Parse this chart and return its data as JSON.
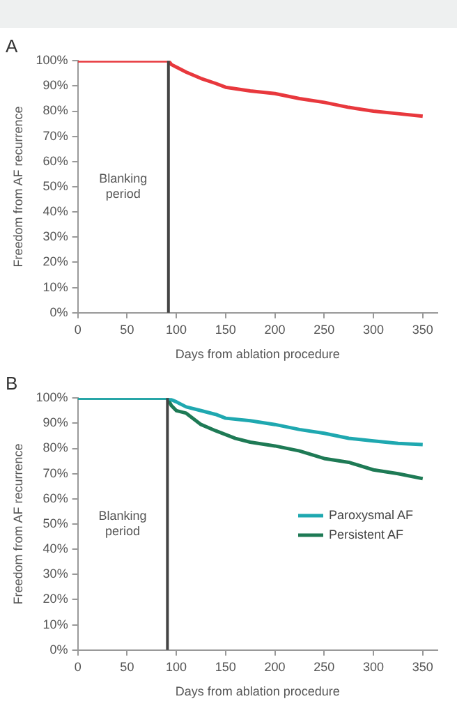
{
  "chart_data": [
    {
      "type": "line",
      "title": "A",
      "xlabel": "Days from ablation procedure",
      "ylabel": "Freedom from AF recurrence",
      "xlim": [
        0,
        365
      ],
      "xticks": [
        0,
        50,
        100,
        150,
        200,
        250,
        300,
        350
      ],
      "ylim": [
        0,
        100
      ],
      "yticks": [
        {
          "value": 0,
          "label": "0%"
        },
        {
          "value": 10,
          "label": "10%"
        },
        {
          "value": 20,
          "label": "20%"
        },
        {
          "value": 30,
          "label": "30%"
        },
        {
          "value": 40,
          "label": "40%"
        },
        {
          "value": 50,
          "label": "50%"
        },
        {
          "value": 60,
          "label": "60%"
        },
        {
          "value": 70,
          "label": "70%"
        },
        {
          "value": 80,
          "label": "80%"
        },
        {
          "value": 90,
          "label": "90%"
        },
        {
          "value": 100,
          "label": "100%"
        }
      ],
      "grid": false,
      "legend": false,
      "marker": "none",
      "line_style": "solid",
      "ref_lines": [
        {
          "axis": "x",
          "value": 92,
          "label": "Blanking period",
          "color": "#444444"
        }
      ],
      "series": [
        {
          "color": "#e8383d",
          "x": [
            0,
            92,
            95,
            100,
            110,
            125,
            140,
            150,
            175,
            200,
            225,
            250,
            275,
            300,
            325,
            350
          ],
          "values": [
            100,
            100,
            98.5,
            97.5,
            95.5,
            93,
            91,
            89.5,
            88,
            87,
            85,
            83.5,
            81.5,
            80,
            79,
            78
          ]
        }
      ]
    },
    {
      "type": "line",
      "title": "B",
      "xlabel": "Days from ablation procedure",
      "ylabel": "Freedom from AF recurrence",
      "xlim": [
        0,
        365
      ],
      "xticks": [
        0,
        50,
        100,
        150,
        200,
        250,
        300,
        350
      ],
      "ylim": [
        0,
        100
      ],
      "yticks": [
        {
          "value": 0,
          "label": "0%"
        },
        {
          "value": 10,
          "label": "10%"
        },
        {
          "value": 20,
          "label": "20%"
        },
        {
          "value": 30,
          "label": "30%"
        },
        {
          "value": 40,
          "label": "40%"
        },
        {
          "value": 50,
          "label": "50%"
        },
        {
          "value": 60,
          "label": "60%"
        },
        {
          "value": 70,
          "label": "70%"
        },
        {
          "value": 80,
          "label": "80%"
        },
        {
          "value": 90,
          "label": "90%"
        },
        {
          "value": 100,
          "label": "100%"
        }
      ],
      "grid": false,
      "legend": "right",
      "marker": "none",
      "line_style": "solid",
      "ref_lines": [
        {
          "axis": "x",
          "value": 91,
          "label": "Blanking period",
          "color": "#444444"
        }
      ],
      "series": [
        {
          "name": "Paroxysmal AF",
          "color": "#1fa8b0",
          "x": [
            0,
            91,
            100,
            110,
            125,
            140,
            150,
            175,
            200,
            225,
            250,
            275,
            300,
            325,
            350
          ],
          "values": [
            100,
            100,
            98.5,
            96.5,
            95,
            93.5,
            92,
            91,
            89.5,
            87.5,
            86,
            84,
            83,
            82,
            81.5
          ]
        },
        {
          "name": "Persistent AF",
          "color": "#1e7a55",
          "x": [
            0,
            91,
            95,
            100,
            110,
            125,
            140,
            150,
            160,
            175,
            200,
            225,
            250,
            275,
            300,
            325,
            350
          ],
          "values": [
            100,
            100,
            97,
            95,
            94,
            89.5,
            87,
            85.5,
            84,
            82.5,
            81,
            79,
            76,
            74.5,
            71.5,
            70,
            68
          ]
        }
      ]
    }
  ]
}
